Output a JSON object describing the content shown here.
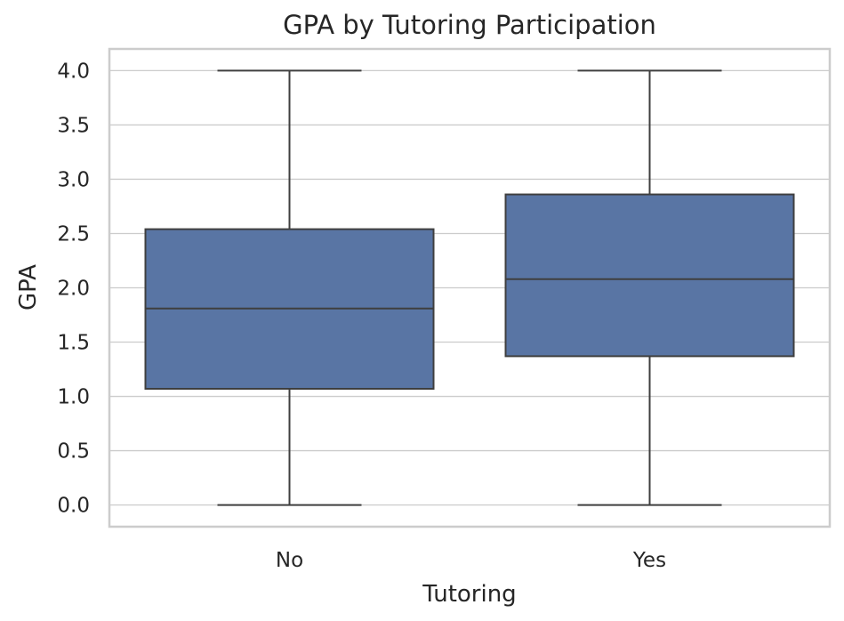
{
  "chart_data": {
    "type": "box",
    "title": "GPA by Tutoring Participation",
    "xlabel": "Tutoring",
    "ylabel": "GPA",
    "categories": [
      "No",
      "Yes"
    ],
    "ylim": [
      -0.2,
      4.2
    ],
    "yticks": [
      0.0,
      0.5,
      1.0,
      1.5,
      2.0,
      2.5,
      3.0,
      3.5,
      4.0
    ],
    "ytick_labels": [
      "0.0",
      "0.5",
      "1.0",
      "1.5",
      "2.0",
      "2.5",
      "3.0",
      "3.5",
      "4.0"
    ],
    "grid": true,
    "box_color": "#5975a4",
    "line_color": "#3f3f3f",
    "boxes": [
      {
        "category": "No",
        "min": 0.0,
        "q1": 1.07,
        "median": 1.81,
        "q3": 2.54,
        "max": 4.0
      },
      {
        "category": "Yes",
        "min": 0.0,
        "q1": 1.37,
        "median": 2.08,
        "q3": 2.86,
        "max": 4.0
      }
    ]
  }
}
